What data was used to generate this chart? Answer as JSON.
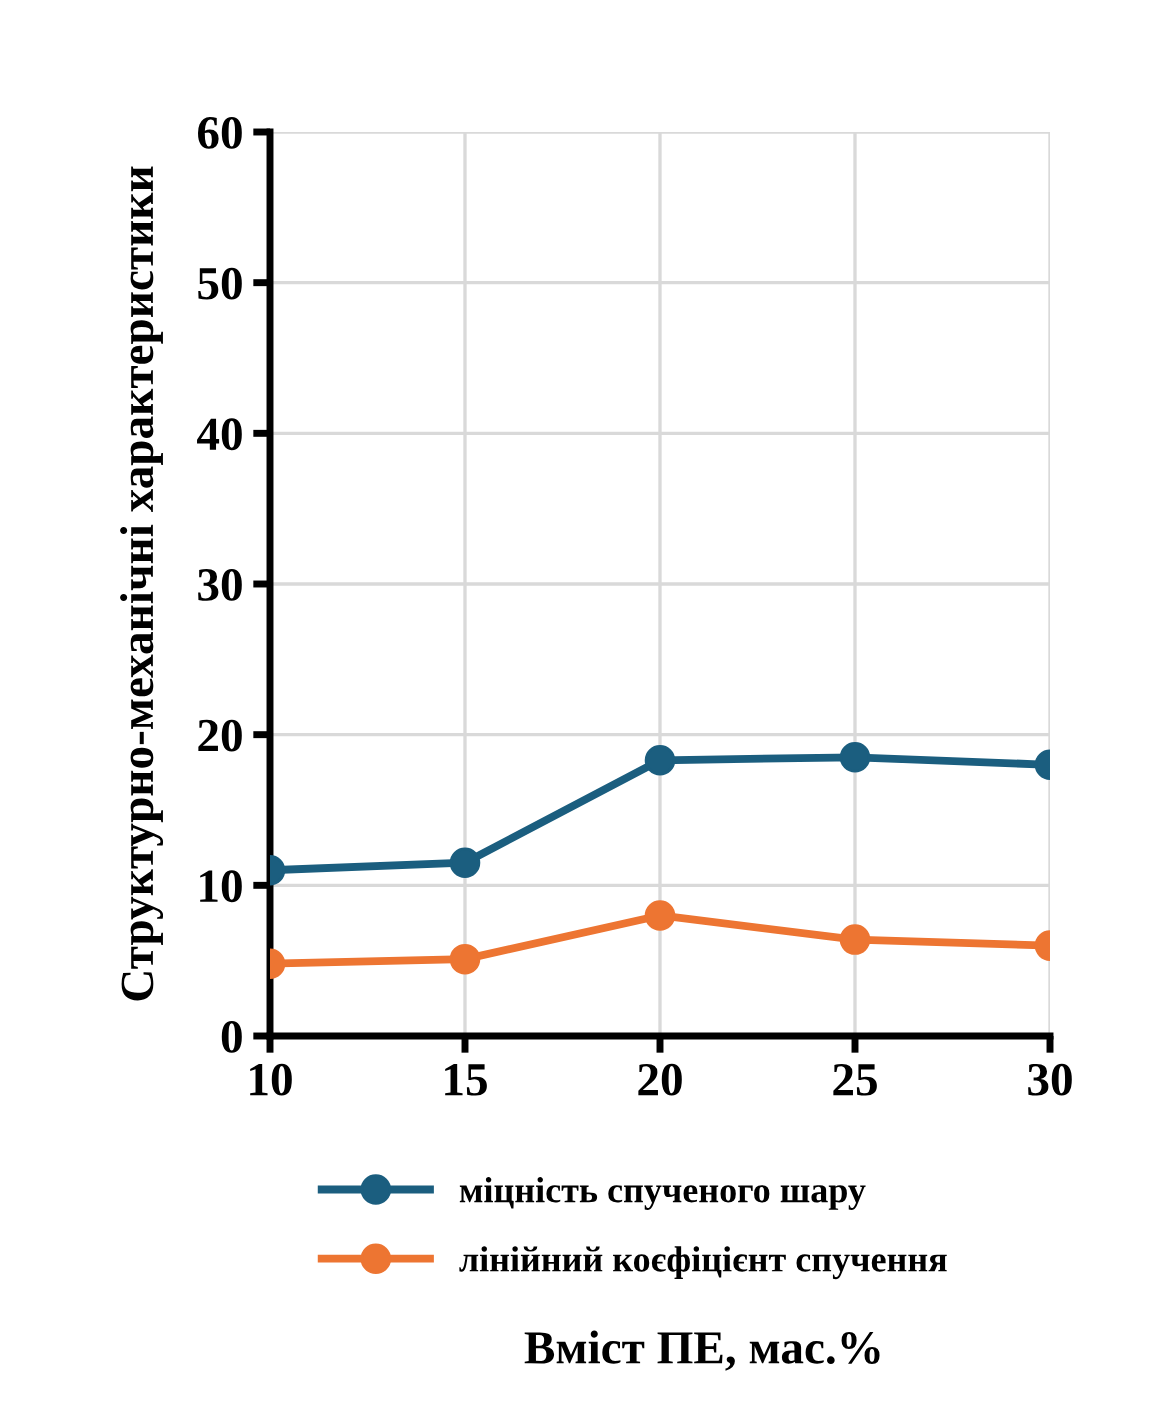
{
  "chart_data": {
    "type": "line",
    "xlabel": "Вміст ПЕ, мас.%",
    "ylabel": "Структурно-механічні характеристики",
    "x": [
      10,
      15,
      20,
      25,
      30
    ],
    "series": [
      {
        "name": "міцність спученого шару",
        "color": "#1b5e7f",
        "values": [
          11.0,
          11.5,
          18.3,
          18.5,
          18.0
        ]
      },
      {
        "name": "лінійний коєфіцієнт спучення",
        "color": "#ed7532",
        "values": [
          4.8,
          5.1,
          8.0,
          6.4,
          6.0
        ]
      }
    ],
    "xlim": [
      10,
      30
    ],
    "xticks": [
      10,
      15,
      20,
      25,
      30
    ],
    "ylim": [
      0,
      60
    ],
    "yticks": [
      0,
      10,
      20,
      30,
      40,
      50,
      60
    ],
    "grid": true,
    "legend": "bottom",
    "marker": "circle",
    "line_style": "solid"
  }
}
